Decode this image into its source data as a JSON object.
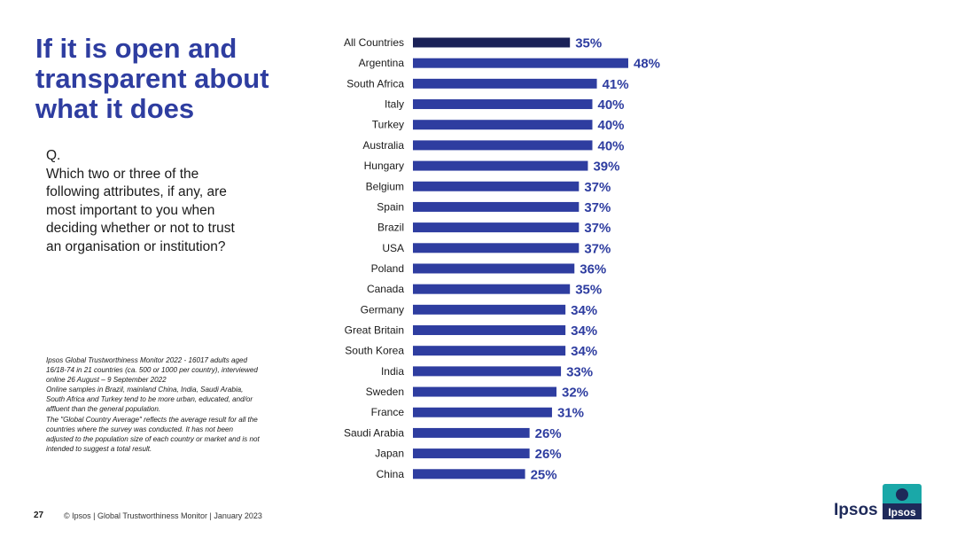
{
  "title_lines": [
    "If it is open and",
    "transparent about",
    "what it does"
  ],
  "question_lines": [
    "Q.",
    "Which two or three of the",
    "following attributes, if any, are",
    "most important to you when",
    "deciding whether or not to trust",
    "an organisation or institution?"
  ],
  "notes_lines": [
    "Ipsos Global Trustworthiness Monitor 2022 - 16017 adults aged",
    "16/18-74 in 21 countries (ca. 500 or 1000 per country), interviewed",
    "online 26 August – 9 September 2022",
    "Online samples in Brazil, mainland China, India, Saudi Arabia,",
    "South Africa and Turkey tend to be more urban, educated, and/or",
    "affluent than the general population.",
    "The \"Global Country Average\" reflects the average result for all the",
    "countries where the survey was conducted. It has not been",
    "adjusted to the population size of each country or market and is not",
    "intended to suggest a total result."
  ],
  "footer": {
    "page_number": "27",
    "text": "© Ipsos | Global Trustworthiness Monitor | January 2023"
  },
  "logo": {
    "word": "Ipsos",
    "badge_text": "Ipsos"
  },
  "colors": {
    "title": "#2E3DA0",
    "bar": "#2E3DA0",
    "highlight_bar": "#1A2157",
    "label": "#2E3DA0",
    "logo_teal": "#1AA8A8"
  },
  "chart_data": {
    "type": "bar",
    "orientation": "horizontal",
    "title": "",
    "xlabel": "",
    "ylabel": "",
    "xlim": [
      0,
      48
    ],
    "highlight": "All Countries",
    "categories": [
      "All Countries",
      "Argentina",
      "South Africa",
      "Italy",
      "Turkey",
      "Australia",
      "Hungary",
      "Belgium",
      "Spain",
      "Brazil",
      "USA",
      "Poland",
      "Canada",
      "Germany",
      "Great Britain",
      "South Korea",
      "India",
      "Sweden",
      "France",
      "Saudi Arabia",
      "Japan",
      "China"
    ],
    "values": [
      35,
      48,
      41,
      40,
      40,
      40,
      39,
      37,
      37,
      37,
      37,
      36,
      35,
      34,
      34,
      34,
      33,
      32,
      31,
      26,
      26,
      25
    ],
    "value_labels": [
      "35%",
      "48%",
      "41%",
      "40%",
      "40%",
      "40%",
      "39%",
      "37%",
      "37%",
      "37%",
      "37%",
      "36%",
      "35%",
      "34%",
      "34%",
      "34%",
      "33%",
      "32%",
      "31%",
      "26%",
      "26%",
      "25%"
    ]
  }
}
